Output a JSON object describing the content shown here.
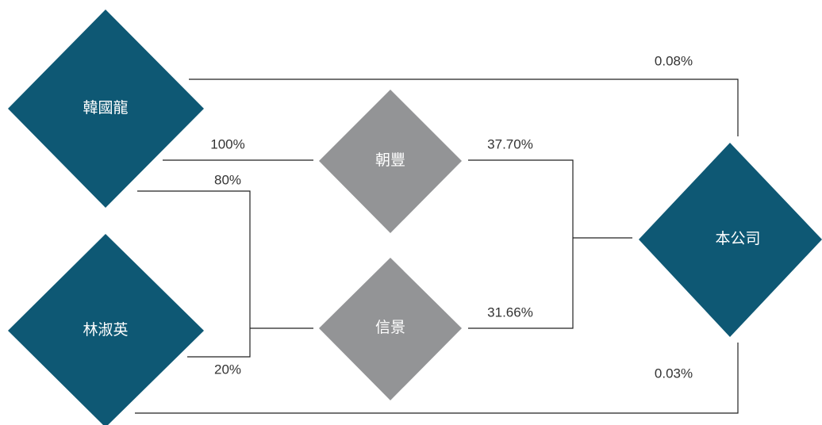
{
  "nodes": [
    {
      "label": "韓國龍"
    },
    {
      "label": "林淑英"
    },
    {
      "label": "朝豐"
    },
    {
      "label": "信景"
    },
    {
      "label": "本公司"
    }
  ],
  "edges": [
    {
      "label": "0.08%"
    },
    {
      "label": "100%"
    },
    {
      "label": "80%"
    },
    {
      "label": "20%"
    },
    {
      "label": "37.70%"
    },
    {
      "label": "31.66%"
    },
    {
      "label": "0.03%"
    }
  ]
}
